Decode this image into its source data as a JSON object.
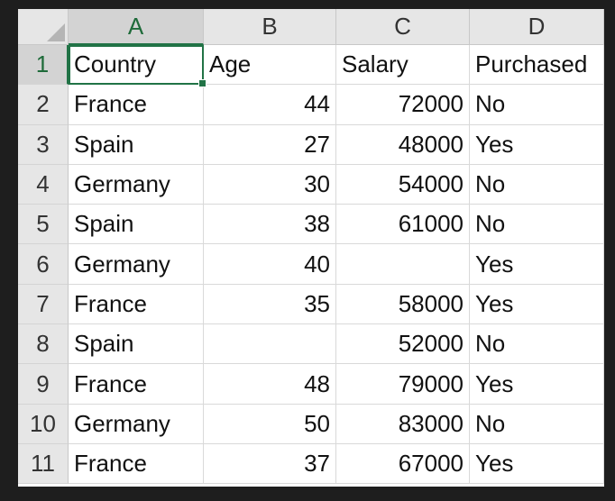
{
  "spreadsheet": {
    "columns": [
      "A",
      "B",
      "C",
      "D"
    ],
    "active_cell": "A1",
    "rows": [
      {
        "num": "1",
        "cells": [
          "Country",
          "Age",
          "Salary",
          "Purchased"
        ]
      },
      {
        "num": "2",
        "cells": [
          "France",
          "44",
          "72000",
          "No"
        ]
      },
      {
        "num": "3",
        "cells": [
          "Spain",
          "27",
          "48000",
          "Yes"
        ]
      },
      {
        "num": "4",
        "cells": [
          "Germany",
          "30",
          "54000",
          "No"
        ]
      },
      {
        "num": "5",
        "cells": [
          "Spain",
          "38",
          "61000",
          "No"
        ]
      },
      {
        "num": "6",
        "cells": [
          "Germany",
          "40",
          "",
          "Yes"
        ]
      },
      {
        "num": "7",
        "cells": [
          "France",
          "35",
          "58000",
          "Yes"
        ]
      },
      {
        "num": "8",
        "cells": [
          "Spain",
          "",
          "52000",
          "No"
        ]
      },
      {
        "num": "9",
        "cells": [
          "France",
          "48",
          "79000",
          "Yes"
        ]
      },
      {
        "num": "10",
        "cells": [
          "Germany",
          "50",
          "83000",
          "No"
        ]
      },
      {
        "num": "11",
        "cells": [
          "France",
          "37",
          "67000",
          "Yes"
        ]
      }
    ]
  },
  "colors": {
    "selection_accent": "#217346",
    "header_bg": "#e6e6e6",
    "window_bg": "#1e1e1e"
  }
}
